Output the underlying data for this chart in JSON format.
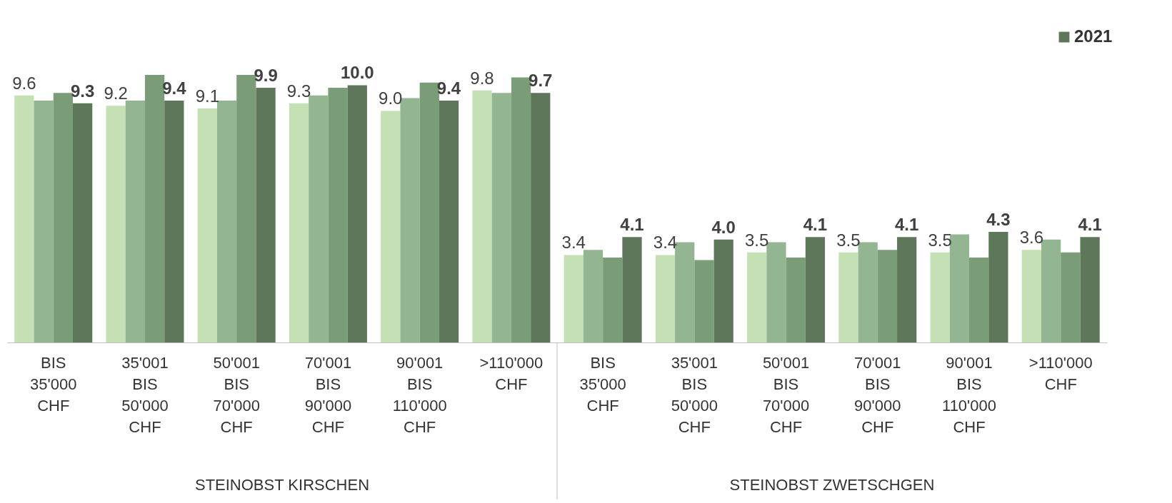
{
  "chart_data": {
    "type": "bar",
    "categories": [
      "BIS 35'000 CHF",
      "35'001 BIS 50'000 CHF",
      "50'001 BIS 70'000 CHF",
      "70'001 BIS 90'000 CHF",
      "90'001 BIS 110'000 CHF",
      ">110'000 CHF",
      "BIS 35'000 CHF",
      "35'001 BIS 50'000 CHF",
      "50'001 BIS 70'000 CHF",
      "70'001 BIS 90'000 CHF",
      "90'001 BIS 110'000 CHF",
      ">110'000 CHF"
    ],
    "series": [
      {
        "color": "#c5e0b4",
        "values": [
          9.6,
          9.2,
          9.1,
          9.3,
          9.0,
          9.8,
          3.4,
          3.4,
          3.5,
          3.5,
          3.5,
          3.6
        ],
        "value_labels": [
          "9.6",
          "9.2",
          "9.1",
          "9.3",
          "9.0",
          "9.8",
          "3.4",
          "3.4",
          "3.5",
          "3.5",
          "3.5",
          "3.6"
        ]
      },
      {
        "color": "#94b592",
        "values": [
          9.4,
          9.4,
          9.4,
          9.6,
          9.5,
          9.7,
          3.6,
          3.9,
          3.9,
          3.9,
          4.2,
          4.0
        ]
      },
      {
        "color": "#7a9c76",
        "values": [
          9.7,
          10.4,
          10.4,
          9.9,
          10.1,
          10.3,
          3.3,
          3.2,
          3.3,
          3.6,
          3.3,
          3.5
        ]
      },
      {
        "name": "2021",
        "color": "#5e775b",
        "values": [
          9.3,
          9.4,
          9.9,
          10.0,
          9.4,
          9.7,
          4.1,
          4.0,
          4.1,
          4.1,
          4.3,
          4.1
        ],
        "value_labels": [
          "9.3",
          "9.4",
          "9.9",
          "10.0",
          "9.4",
          "9.7",
          "4.1",
          "4.0",
          "4.1",
          "4.1",
          "4.3",
          "4.1"
        ]
      }
    ],
    "annotations": [
      "STEINOBST KIRSCHEN",
      "STEINOBST ZWETSCHGEN"
    ],
    "legend": "top right"
  }
}
